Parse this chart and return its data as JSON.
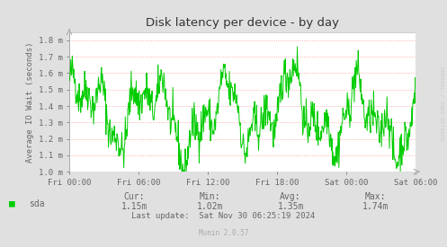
{
  "title": "Disk latency per device - by day",
  "ylabel": "Average IO Wait (seconds)",
  "background_color": "#e0e0e0",
  "plot_bg_color": "#ffffff",
  "line_color": "#00cc00",
  "grid_color": "#ff9999",
  "title_color": "#333333",
  "text_color": "#666666",
  "ylim": [
    0.001,
    0.00185
  ],
  "yticks": [
    0.001,
    0.0011,
    0.0012,
    0.0013,
    0.0014,
    0.0015,
    0.0016,
    0.0017,
    0.0018
  ],
  "ytick_labels": [
    "1.0 m",
    "1.1 m",
    "1.2 m",
    "1.3 m",
    "1.4 m",
    "1.5 m",
    "1.6 m",
    "1.7 m",
    "1.8 m"
  ],
  "xtick_labels": [
    "Fri 00:00",
    "Fri 06:00",
    "Fri 12:00",
    "Fri 18:00",
    "Sat 00:00",
    "Sat 06:00"
  ],
  "legend_label": "sda",
  "cur_val": "1.15m",
  "min_val": "1.02m",
  "avg_val": "1.35m",
  "max_val": "1.74m",
  "last_update": "Last update:  Sat Nov 30 06:25:19 2024",
  "munin_version": "Munin 2.0.57",
  "rrdtool_label": "RRDTOOL / TOBI OETIKER",
  "seed": 42,
  "n_points": 700
}
